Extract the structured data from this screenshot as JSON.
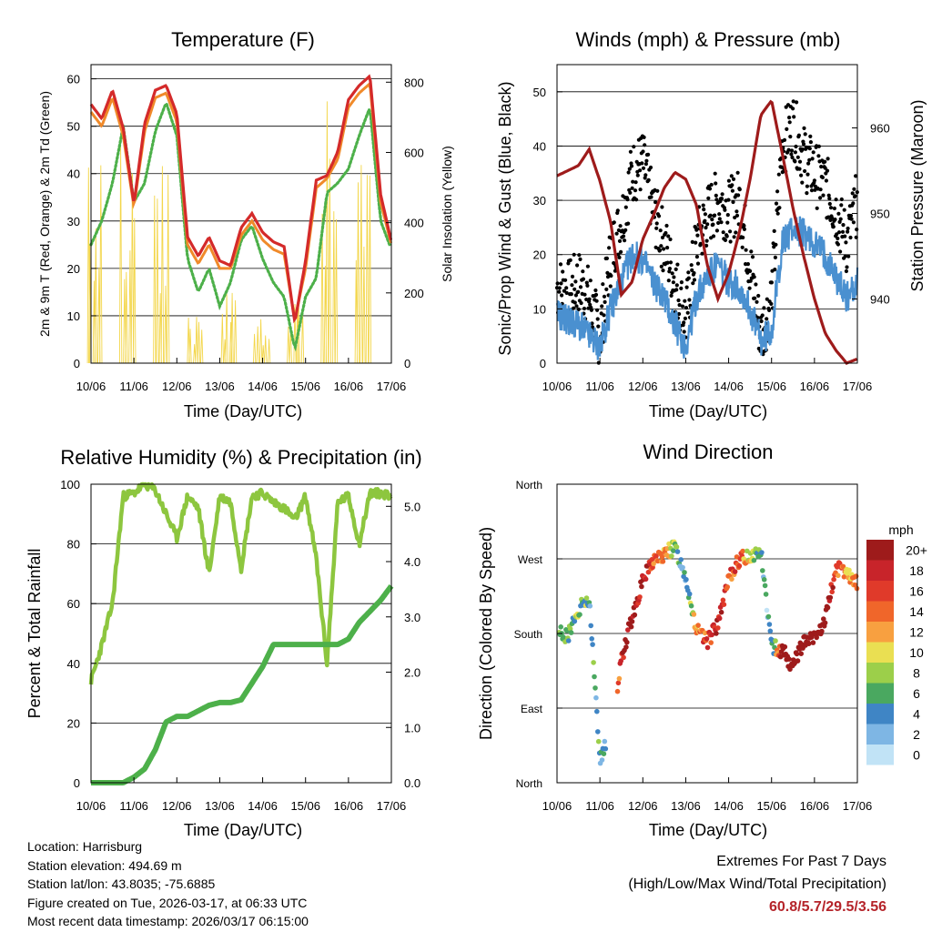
{
  "temperature": {
    "title": "Temperature (F)",
    "xlabel": "Time (Day/UTC)",
    "ylabel_left": "2m & 9m T (Red, Orange) & 2m Td (Green)",
    "ylabel_right": "Solar Insolation (Yellow)",
    "x_ticks": [
      "10/06",
      "11/06",
      "12/06",
      "13/06",
      "14/06",
      "15/06",
      "16/06",
      "17/06"
    ],
    "y_ticks_left": [
      "0",
      "10",
      "20",
      "30",
      "40",
      "50",
      "60"
    ],
    "y_ticks_right": [
      "0",
      "200",
      "400",
      "600",
      "800"
    ],
    "colors": {
      "t2m": "#d42a2a",
      "t9m": "#f08a2a",
      "td": "#4db04a",
      "solar": "#f3d64a"
    }
  },
  "winds": {
    "title": "Winds (mph) & Pressure (mb)",
    "xlabel": "Time (Day/UTC)",
    "ylabel_left": "Sonic/Prop Wind & Gust (Blue, Black)",
    "ylabel_right": "Station Pressure (Maroon)",
    "x_ticks": [
      "10/06",
      "11/06",
      "12/06",
      "13/06",
      "14/06",
      "15/06",
      "16/06",
      "17/06"
    ],
    "y_ticks_left": [
      "0",
      "10",
      "20",
      "30",
      "40",
      "50"
    ],
    "y_ticks_right": [
      "940",
      "950",
      "960"
    ],
    "colors": {
      "wind": "#4a90d0",
      "gust": "#000000",
      "pressure": "#9e1b1b"
    }
  },
  "humidity": {
    "title": "Relative Humidity (%) & Precipitation (in)",
    "xlabel": "Time (Day/UTC)",
    "ylabel": "Percent & Total Rainfall",
    "x_ticks": [
      "10/06",
      "11/06",
      "12/06",
      "13/06",
      "14/06",
      "15/06",
      "16/06",
      "17/06"
    ],
    "y_ticks_left": [
      "0",
      "20",
      "40",
      "60",
      "80",
      "100"
    ],
    "y_ticks_right": [
      "0.0",
      "1.0",
      "2.0",
      "3.0",
      "4.0",
      "5.0"
    ],
    "colors": {
      "rh": "#8dc63f",
      "precip": "#4db04a"
    }
  },
  "direction": {
    "title": "Wind Direction",
    "xlabel": "Time (Day/UTC)",
    "ylabel": "Direction (Colored By Speed)",
    "x_ticks": [
      "10/06",
      "11/06",
      "12/06",
      "13/06",
      "14/06",
      "15/06",
      "16/06",
      "17/06"
    ],
    "y_ticks": [
      "North",
      "East",
      "South",
      "West",
      "North"
    ],
    "legend_title": "mph",
    "legend_labels": [
      "20+",
      "18",
      "16",
      "14",
      "12",
      "10",
      "8",
      "6",
      "4",
      "2",
      "0"
    ],
    "legend_colors": [
      "#9e1b1b",
      "#c8242a",
      "#e03a2a",
      "#f0662a",
      "#f8a040",
      "#eadf52",
      "#9ccf4a",
      "#4aa860",
      "#3f85c5",
      "#7eb6e4",
      "#c1e3f6"
    ]
  },
  "chart_data": [
    {
      "type": "line",
      "title": "Temperature (F)",
      "x": [
        0,
        0.25,
        0.5,
        0.75,
        1,
        1.25,
        1.5,
        1.75,
        2,
        2.25,
        2.5,
        2.75,
        3,
        3.25,
        3.5,
        3.75,
        4,
        4.25,
        4.5,
        4.75,
        5,
        5.25,
        5.5,
        5.75,
        6,
        6.25,
        6.5,
        6.75,
        7
      ],
      "x_units": "days since 10/06",
      "series": [
        {
          "name": "2m T (Red)",
          "values": [
            54,
            51,
            57,
            49,
            33,
            50,
            57,
            58,
            52,
            26,
            22,
            26,
            21,
            20,
            28,
            31,
            27,
            25,
            24,
            8,
            21,
            38,
            39,
            44,
            55,
            58,
            60,
            35,
            25
          ]
        },
        {
          "name": "9m T (Orange)",
          "values": [
            53,
            50,
            56,
            48,
            33,
            49,
            56,
            57,
            51,
            25,
            21,
            25,
            20,
            20,
            27,
            30,
            26,
            24,
            23,
            9,
            20,
            37,
            39,
            43,
            54,
            57,
            59,
            34,
            25
          ]
        },
        {
          "name": "2m Td (Green)",
          "values": [
            25,
            30,
            38,
            50,
            34,
            38,
            49,
            55,
            48,
            22,
            15,
            20,
            12,
            17,
            26,
            29,
            22,
            17,
            14,
            3,
            14,
            18,
            36,
            38,
            41,
            48,
            54,
            30,
            24
          ]
        }
      ],
      "solar_peak_wm2": [
        590,
        700,
        580,
        170,
        200,
        130,
        180,
        820,
        640
      ],
      "ylim_left": [
        0,
        63
      ],
      "ylim_right": [
        0,
        850
      ],
      "xlabel": "Time (Day/UTC)",
      "ylabel": "2m & 9m T (Red, Orange) & 2m Td (Green)",
      "ylabel_right": "Solar Insolation (Yellow)"
    },
    {
      "type": "line",
      "title": "Winds (mph) & Pressure (mb)",
      "x": [
        0,
        0.25,
        0.5,
        0.75,
        1,
        1.25,
        1.5,
        1.75,
        2,
        2.25,
        2.5,
        2.75,
        3,
        3.25,
        3.5,
        3.75,
        4,
        4.25,
        4.5,
        4.75,
        5,
        5.25,
        5.5,
        5.75,
        6,
        6.25,
        6.5,
        6.75,
        7
      ],
      "x_units": "days since 10/06",
      "series": [
        {
          "name": "Sonic/Prop Wind (Blue)",
          "values": [
            9,
            8,
            7,
            5,
            3,
            10,
            15,
            20,
            19,
            15,
            12,
            7,
            3,
            12,
            16,
            18,
            15,
            14,
            10,
            4,
            6,
            22,
            25,
            24,
            22,
            20,
            16,
            12,
            15
          ]
        },
        {
          "name": "Gust (Black)",
          "values": [
            14,
            13,
            15,
            12,
            5,
            20,
            26,
            35,
            37,
            28,
            22,
            15,
            8,
            22,
            27,
            30,
            28,
            30,
            18,
            5,
            12,
            40,
            44,
            38,
            35,
            33,
            28,
            22,
            30
          ]
        },
        {
          "name": "Station Pressure (Maroon)",
          "values": [
            954.4,
            955,
            955.6,
            957.5,
            953.8,
            949,
            940.5,
            942,
            947,
            949.8,
            953,
            954.8,
            954,
            951,
            944,
            940,
            943,
            947.8,
            954,
            961.5,
            963.2,
            957,
            950.6,
            945,
            940,
            936,
            934,
            932.5,
            933
          ]
        }
      ],
      "ylim_left": [
        0,
        55
      ],
      "ylim_right": [
        932.5,
        967.4
      ],
      "xlabel": "Time (Day/UTC)",
      "ylabel": "Sonic/Prop Wind & Gust (Blue, Black)",
      "ylabel_right": "Station Pressure (Maroon)"
    },
    {
      "type": "line",
      "title": "Relative Humidity (%) & Precipitation (in)",
      "x": [
        0,
        0.25,
        0.5,
        0.75,
        1,
        1.25,
        1.5,
        1.75,
        2,
        2.25,
        2.5,
        2.75,
        3,
        3.25,
        3.5,
        3.75,
        4,
        4.25,
        4.5,
        4.75,
        5,
        5.25,
        5.5,
        5.75,
        6,
        6.25,
        6.5,
        6.75,
        7
      ],
      "x_units": "days since 10/06",
      "series": [
        {
          "name": "Relative Humidity %",
          "values": [
            34,
            46,
            60,
            96,
            97,
            100,
            98,
            90,
            82,
            96,
            92,
            70,
            96,
            94,
            72,
            96,
            97,
            94,
            92,
            88,
            96,
            75,
            40,
            94,
            96,
            80,
            97,
            97,
            96
          ]
        },
        {
          "name": "Total Precipitation in",
          "values": [
            0,
            0,
            0,
            0,
            0.1,
            0.25,
            0.6,
            1.1,
            1.2,
            1.2,
            1.3,
            1.4,
            1.45,
            1.45,
            1.5,
            1.8,
            2.1,
            2.5,
            2.5,
            2.5,
            2.5,
            2.5,
            2.5,
            2.5,
            2.6,
            2.9,
            3.1,
            3.3,
            3.56
          ]
        }
      ],
      "ylim_left": [
        0,
        100
      ],
      "ylim_right": [
        0,
        5.4
      ],
      "xlabel": "Time (Day/UTC)",
      "ylabel": "Percent & Total Rainfall"
    },
    {
      "type": "scatter",
      "title": "Wind Direction",
      "x": [
        0,
        0.25,
        0.5,
        0.75,
        1,
        1.25,
        1.5,
        1.75,
        2,
        2.25,
        2.5,
        2.75,
        3,
        3.25,
        3.5,
        3.75,
        4,
        4.25,
        4.5,
        4.75,
        5,
        5.25,
        5.5,
        5.75,
        6,
        6.25,
        6.5,
        6.75,
        7
      ],
      "x_units": "days since 10/06",
      "direction_deg": [
        185,
        175,
        210,
        220,
        30,
        60,
        150,
        200,
        245,
        270,
        275,
        285,
        250,
        185,
        170,
        190,
        245,
        270,
        275,
        280,
        165,
        160,
        140,
        170,
        175,
        195,
        260,
        250,
        240
      ],
      "speed_mph": [
        6,
        7,
        7,
        6,
        4,
        3,
        18,
        20,
        19,
        15,
        12,
        7,
        3,
        12,
        16,
        18,
        15,
        14,
        10,
        4,
        2,
        22,
        25,
        24,
        22,
        20,
        16,
        12,
        15
      ],
      "y_ticks": [
        "North",
        "East",
        "South",
        "West",
        "North"
      ],
      "xlabel": "Time (Day/UTC)",
      "ylabel": "Direction (Colored By Speed)",
      "legend_title": "mph"
    }
  ],
  "footer": {
    "location": "Location: Harrisburg",
    "elevation": "Station elevation: 494.69 m",
    "latlon": "Station lat/lon: 43.8035; -75.6885",
    "created": "Figure created on Tue, 2026-03-17, at 06:33 UTC",
    "recent": "Most recent data timestamp: 2026/03/17 06:15:00"
  },
  "extremes": {
    "title": "Extremes For Past 7 Days",
    "subtitle": "(High/Low/Max Wind/Total Precipitation)",
    "values": "60.8/5.7/29.5/3.56"
  }
}
